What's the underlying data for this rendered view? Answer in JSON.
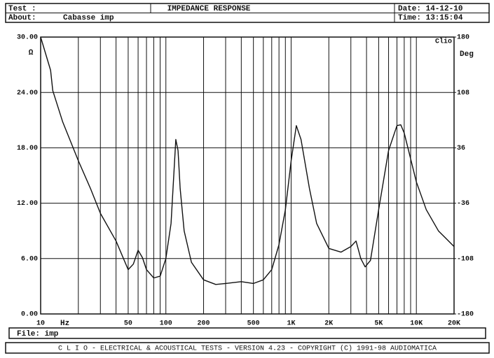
{
  "chart_data": {
    "type": "line",
    "title": "IMPEDANCE RESPONSE",
    "header": {
      "test": "Test :",
      "about": "About:",
      "about_value": "Cabasse imp",
      "date": "Date: 14-12-10",
      "time": "Time: 13:15:04"
    },
    "corner_label": "Clio",
    "file": "File: imp",
    "footer": "C L I O  -  ELECTRICAL & ACOUSTICAL TESTS  -  VERSION 4.23  -  COPYRIGHT (C) 1991-98 AUDIOMATICA",
    "x_unit": "Hz",
    "y_label": "Ω",
    "y2_label": "Deg",
    "xscale": "log",
    "xlim": [
      10,
      20000
    ],
    "xticks": [
      10,
      50,
      100,
      200,
      500,
      {
        "value": 1000,
        "label": "1K"
      },
      {
        "value": 2000,
        "label": "2K"
      },
      {
        "value": 5000,
        "label": "5K"
      },
      {
        "value": 10000,
        "label": "10K"
      },
      {
        "value": 20000,
        "label": "20K"
      }
    ],
    "xminor": [
      20,
      30,
      40,
      60,
      70,
      80,
      90,
      300,
      400,
      600,
      700,
      800,
      900,
      3000,
      4000,
      6000,
      7000,
      8000,
      9000
    ],
    "ylim": [
      0,
      30
    ],
    "yticks": [
      {
        "value": 0,
        "label": "0.00"
      },
      {
        "value": 6,
        "label": "6.00"
      },
      {
        "value": 12,
        "label": "12.00"
      },
      {
        "value": 18,
        "label": "18.00"
      },
      {
        "value": 24,
        "label": "24.00"
      },
      {
        "value": 30,
        "label": "30.00"
      }
    ],
    "y2lim": [
      -180,
      180
    ],
    "y2ticks": [
      -180,
      -108,
      -36,
      36,
      108,
      180
    ],
    "grid": true,
    "series": [
      {
        "name": "Impedance",
        "color": "#111111",
        "x": [
          10,
          12,
          12.5,
          15,
          20,
          25,
          30,
          40,
          50,
          55,
          60,
          65,
          70,
          80,
          90,
          100,
          110,
          120,
          125,
          130,
          140,
          160,
          200,
          250,
          300,
          400,
          500,
          600,
          700,
          800,
          900,
          1000,
          1100,
          1200,
          1400,
          1600,
          2000,
          2500,
          3000,
          3300,
          3600,
          3900,
          4300,
          5000,
          6000,
          7000,
          7500,
          8000,
          10000,
          12000,
          15000,
          20000
        ],
        "values": [
          30,
          26.4,
          24.2,
          20.8,
          16.6,
          13.6,
          10.9,
          7.9,
          4.8,
          5.4,
          6.9,
          6.1,
          4.8,
          3.9,
          4.1,
          6.0,
          9.8,
          18.9,
          17.7,
          13.6,
          9.0,
          5.6,
          3.7,
          3.2,
          3.3,
          3.5,
          3.3,
          3.7,
          4.8,
          7.5,
          11.3,
          16.6,
          20.4,
          18.9,
          13.6,
          9.8,
          7.1,
          6.7,
          7.3,
          7.9,
          6.0,
          5.1,
          5.8,
          11.3,
          17.7,
          20.4,
          20.5,
          19.6,
          14.3,
          11.3,
          9.0,
          7.3
        ]
      }
    ]
  }
}
